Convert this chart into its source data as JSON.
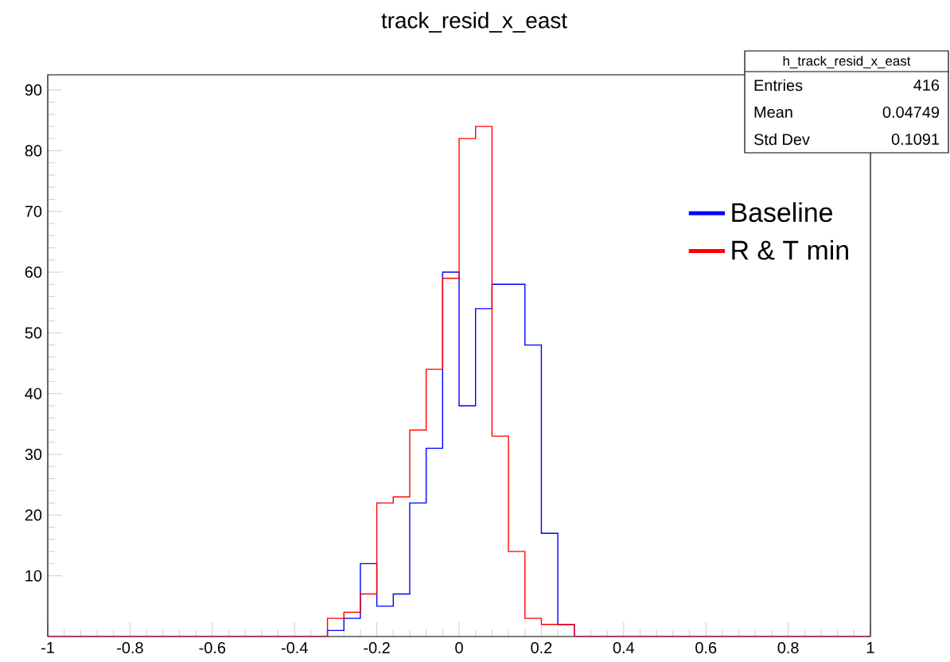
{
  "chart_data": {
    "type": "histogram",
    "title": "track_resid_x_east",
    "bins": [
      -1,
      -0.96,
      -0.92,
      -0.88,
      -0.84,
      -0.8,
      -0.76,
      -0.72,
      -0.68,
      -0.64,
      -0.6,
      -0.56,
      -0.52,
      -0.48,
      -0.44,
      -0.4,
      -0.36,
      -0.32,
      -0.28,
      -0.24,
      -0.2,
      -0.16,
      -0.12,
      -0.08,
      -0.04,
      0,
      0.04,
      0.08,
      0.12,
      0.16,
      0.2,
      0.24,
      0.28,
      0.32,
      0.36,
      0.4,
      0.44,
      0.48,
      0.52,
      0.56,
      0.6,
      0.64,
      0.68,
      0.72,
      0.76,
      0.8,
      0.84,
      0.88,
      0.92,
      0.96,
      1
    ],
    "series": [
      {
        "name": "Baseline",
        "color": "#0000ff",
        "values": [
          0,
          0,
          0,
          0,
          0,
          0,
          0,
          0,
          0,
          0,
          0,
          0,
          0,
          0,
          0,
          0,
          0,
          1,
          3,
          12,
          5,
          7,
          22,
          31,
          60,
          38,
          54,
          58,
          58,
          48,
          17,
          2,
          0,
          0,
          0,
          0,
          0,
          0,
          0,
          0,
          0,
          0,
          0,
          0,
          0,
          0,
          0,
          0,
          0,
          0
        ]
      },
      {
        "name": "R & T min",
        "color": "#ff0000",
        "values": [
          0,
          0,
          0,
          0,
          0,
          0,
          0,
          0,
          0,
          0,
          0,
          0,
          0,
          0,
          0,
          0,
          0,
          3,
          4,
          7,
          22,
          23,
          34,
          44,
          59,
          82,
          84,
          33,
          14,
          3,
          2,
          2,
          0,
          0,
          0,
          0,
          0,
          0,
          0,
          0,
          0,
          0,
          0,
          0,
          0,
          0,
          0,
          0,
          0,
          0
        ]
      }
    ],
    "xlim": [
      -1,
      1
    ],
    "xticks": [
      -1,
      -0.8,
      -0.6,
      -0.4,
      -0.2,
      0,
      0.2,
      0.4,
      0.6,
      0.8,
      1
    ],
    "ylim": [
      0,
      92.5
    ],
    "yticks": [
      10,
      20,
      30,
      40,
      50,
      60,
      70,
      80,
      90
    ],
    "legend": "right",
    "annotations": [
      "h_track_resid_x_east",
      "Entries",
      "416",
      "Mean",
      "0.04749",
      "Std Dev",
      "0.1091"
    ]
  }
}
